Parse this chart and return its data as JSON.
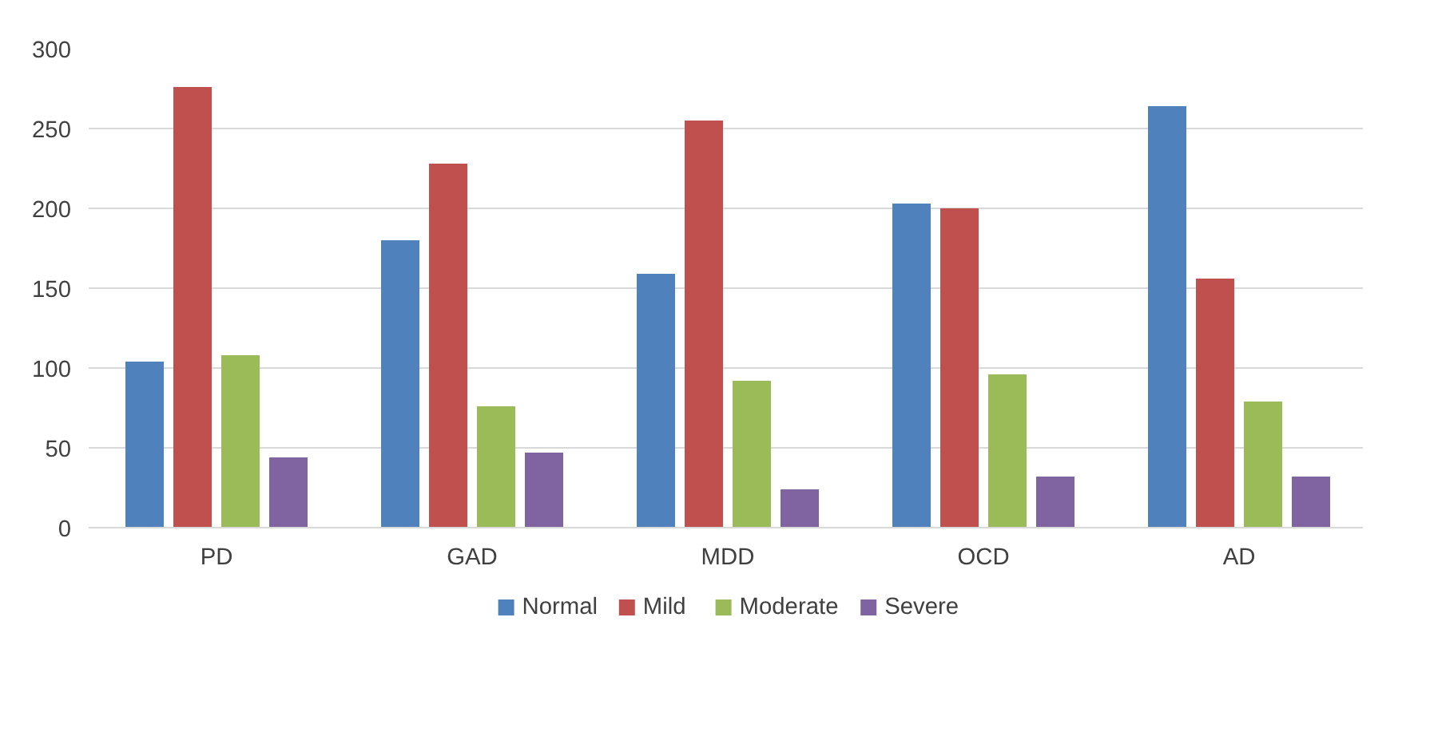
{
  "chart_data": {
    "type": "bar",
    "categories": [
      "PD",
      "GAD",
      "MDD",
      "OCD",
      "AD"
    ],
    "series": [
      {
        "name": "Normal",
        "color": "#4f81bd",
        "values": [
          104,
          180,
          159,
          203,
          264
        ]
      },
      {
        "name": "Mild",
        "color": "#c0504d",
        "values": [
          276,
          228,
          255,
          200,
          156
        ]
      },
      {
        "name": "Moderate",
        "color": "#9bbb59",
        "values": [
          108,
          76,
          92,
          96,
          79
        ]
      },
      {
        "name": "Severe",
        "color": "#8064a2",
        "values": [
          44,
          47,
          24,
          32,
          32
        ]
      }
    ],
    "ylim": [
      0,
      300
    ],
    "yticks": [
      0,
      50,
      100,
      150,
      200,
      250,
      300
    ],
    "grid": "y",
    "legend": "bottom"
  }
}
